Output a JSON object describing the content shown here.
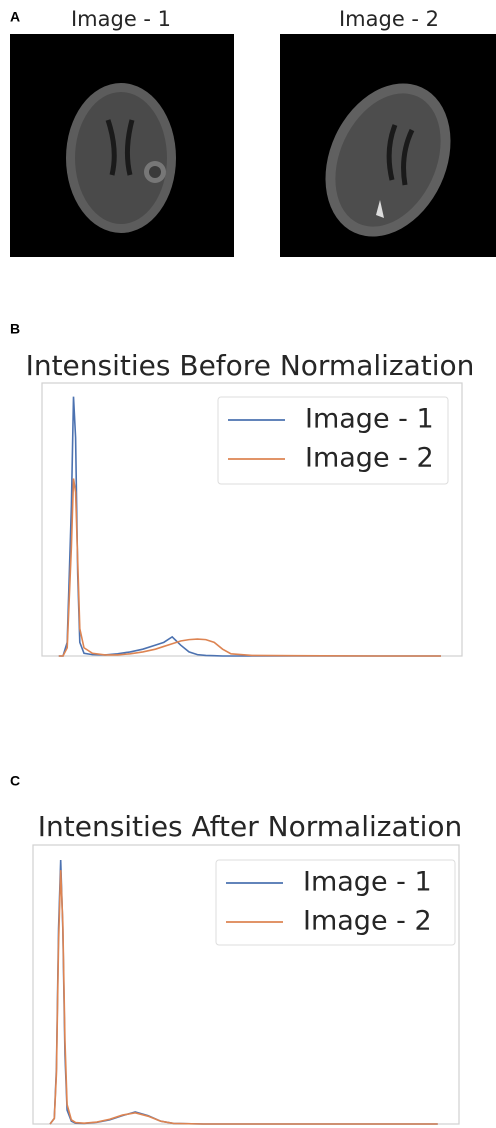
{
  "panel_labels": [
    "A",
    "B",
    "C"
  ],
  "images": [
    {
      "title": "Image - 1"
    },
    {
      "title": "Image - 2"
    }
  ],
  "chart_data": [
    {
      "type": "line",
      "title": "Intensities Before Normalization",
      "x": [
        4,
        5,
        6,
        7,
        7.5,
        8,
        8.5,
        9,
        10,
        12,
        15,
        18,
        21,
        24,
        27,
        29,
        31,
        33,
        35,
        37,
        39,
        41,
        43,
        45,
        50,
        60,
        80,
        95
      ],
      "series": [
        {
          "name": "Image - 1",
          "color": "#4c72b0",
          "values": [
            0,
            0,
            0.05,
            0.55,
            0.95,
            0.8,
            0.3,
            0.05,
            0.01,
            0.005,
            0.004,
            0.008,
            0.015,
            0.025,
            0.04,
            0.05,
            0.07,
            0.04,
            0.015,
            0.005,
            0.002,
            0.001,
            0,
            0,
            0,
            0,
            0,
            0
          ]
        },
        {
          "name": "Image - 2",
          "color": "#dd8452",
          "values": [
            0,
            0,
            0.03,
            0.4,
            0.65,
            0.6,
            0.35,
            0.1,
            0.03,
            0.01,
            0.004,
            0.004,
            0.008,
            0.015,
            0.025,
            0.035,
            0.045,
            0.055,
            0.06,
            0.062,
            0.06,
            0.05,
            0.025,
            0.008,
            0.002,
            0.001,
            0,
            0
          ]
        }
      ],
      "xlim": [
        0,
        100
      ],
      "ylim": [
        0,
        1
      ],
      "legend": "upper right"
    },
    {
      "type": "line",
      "title": "Intensities After Normalization",
      "x": [
        4,
        5,
        5.5,
        6,
        6.5,
        7,
        7.5,
        8,
        9,
        10,
        12,
        15,
        18,
        21,
        24,
        27,
        30,
        33,
        40,
        60,
        95
      ],
      "series": [
        {
          "name": "Image - 1",
          "color": "#4c72b0",
          "values": [
            0,
            0.02,
            0.2,
            0.7,
            0.946,
            0.7,
            0.25,
            0.05,
            0.01,
            0.003,
            0.002,
            0.006,
            0.015,
            0.03,
            0.043,
            0.03,
            0.01,
            0.002,
            0,
            0,
            0
          ]
        },
        {
          "name": "Image - 2",
          "color": "#dd8452",
          "values": [
            0,
            0.02,
            0.18,
            0.65,
            0.91,
            0.72,
            0.3,
            0.07,
            0.015,
            0.005,
            0.003,
            0.007,
            0.017,
            0.032,
            0.04,
            0.028,
            0.01,
            0.002,
            0,
            0,
            0
          ]
        }
      ],
      "xlim": [
        0,
        100
      ],
      "ylim": [
        0,
        1
      ],
      "legend": "upper right"
    }
  ]
}
